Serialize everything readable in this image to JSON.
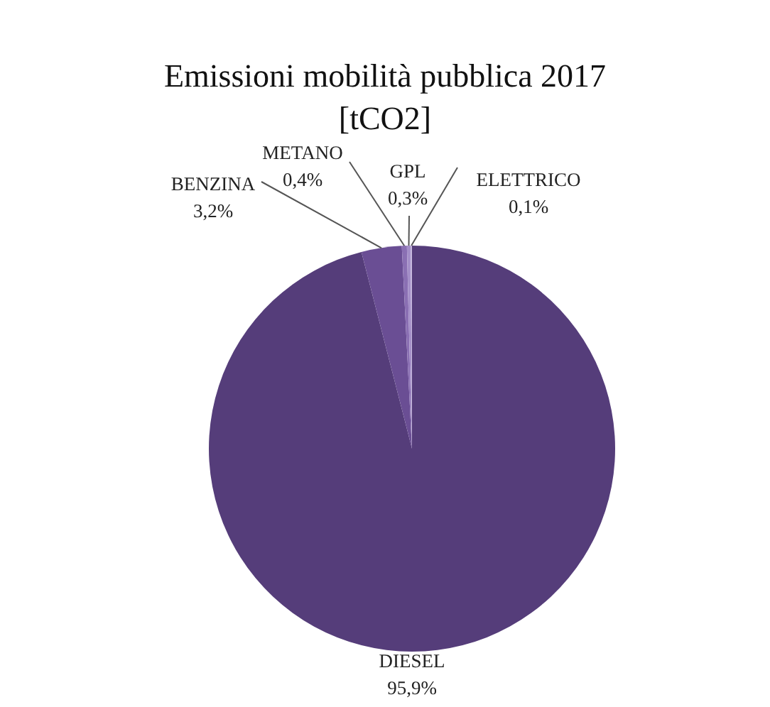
{
  "chart_data": {
    "type": "pie",
    "title": "Emissioni mobilità pubblica 2017 [tCO2]",
    "categories": [
      "DIESEL",
      "BENZINA",
      "METANO",
      "GPL",
      "ELETTRICO"
    ],
    "values": [
      95.9,
      3.2,
      0.4,
      0.3,
      0.1
    ],
    "value_labels": [
      "95,9%",
      "3,2%",
      "0,4%",
      "0,3%",
      "0,1%"
    ],
    "colors": [
      "#553d7a",
      "#6a4e94",
      "#8a6fb3",
      "#a48fc8",
      "#c4b6dd"
    ],
    "legend": false
  }
}
